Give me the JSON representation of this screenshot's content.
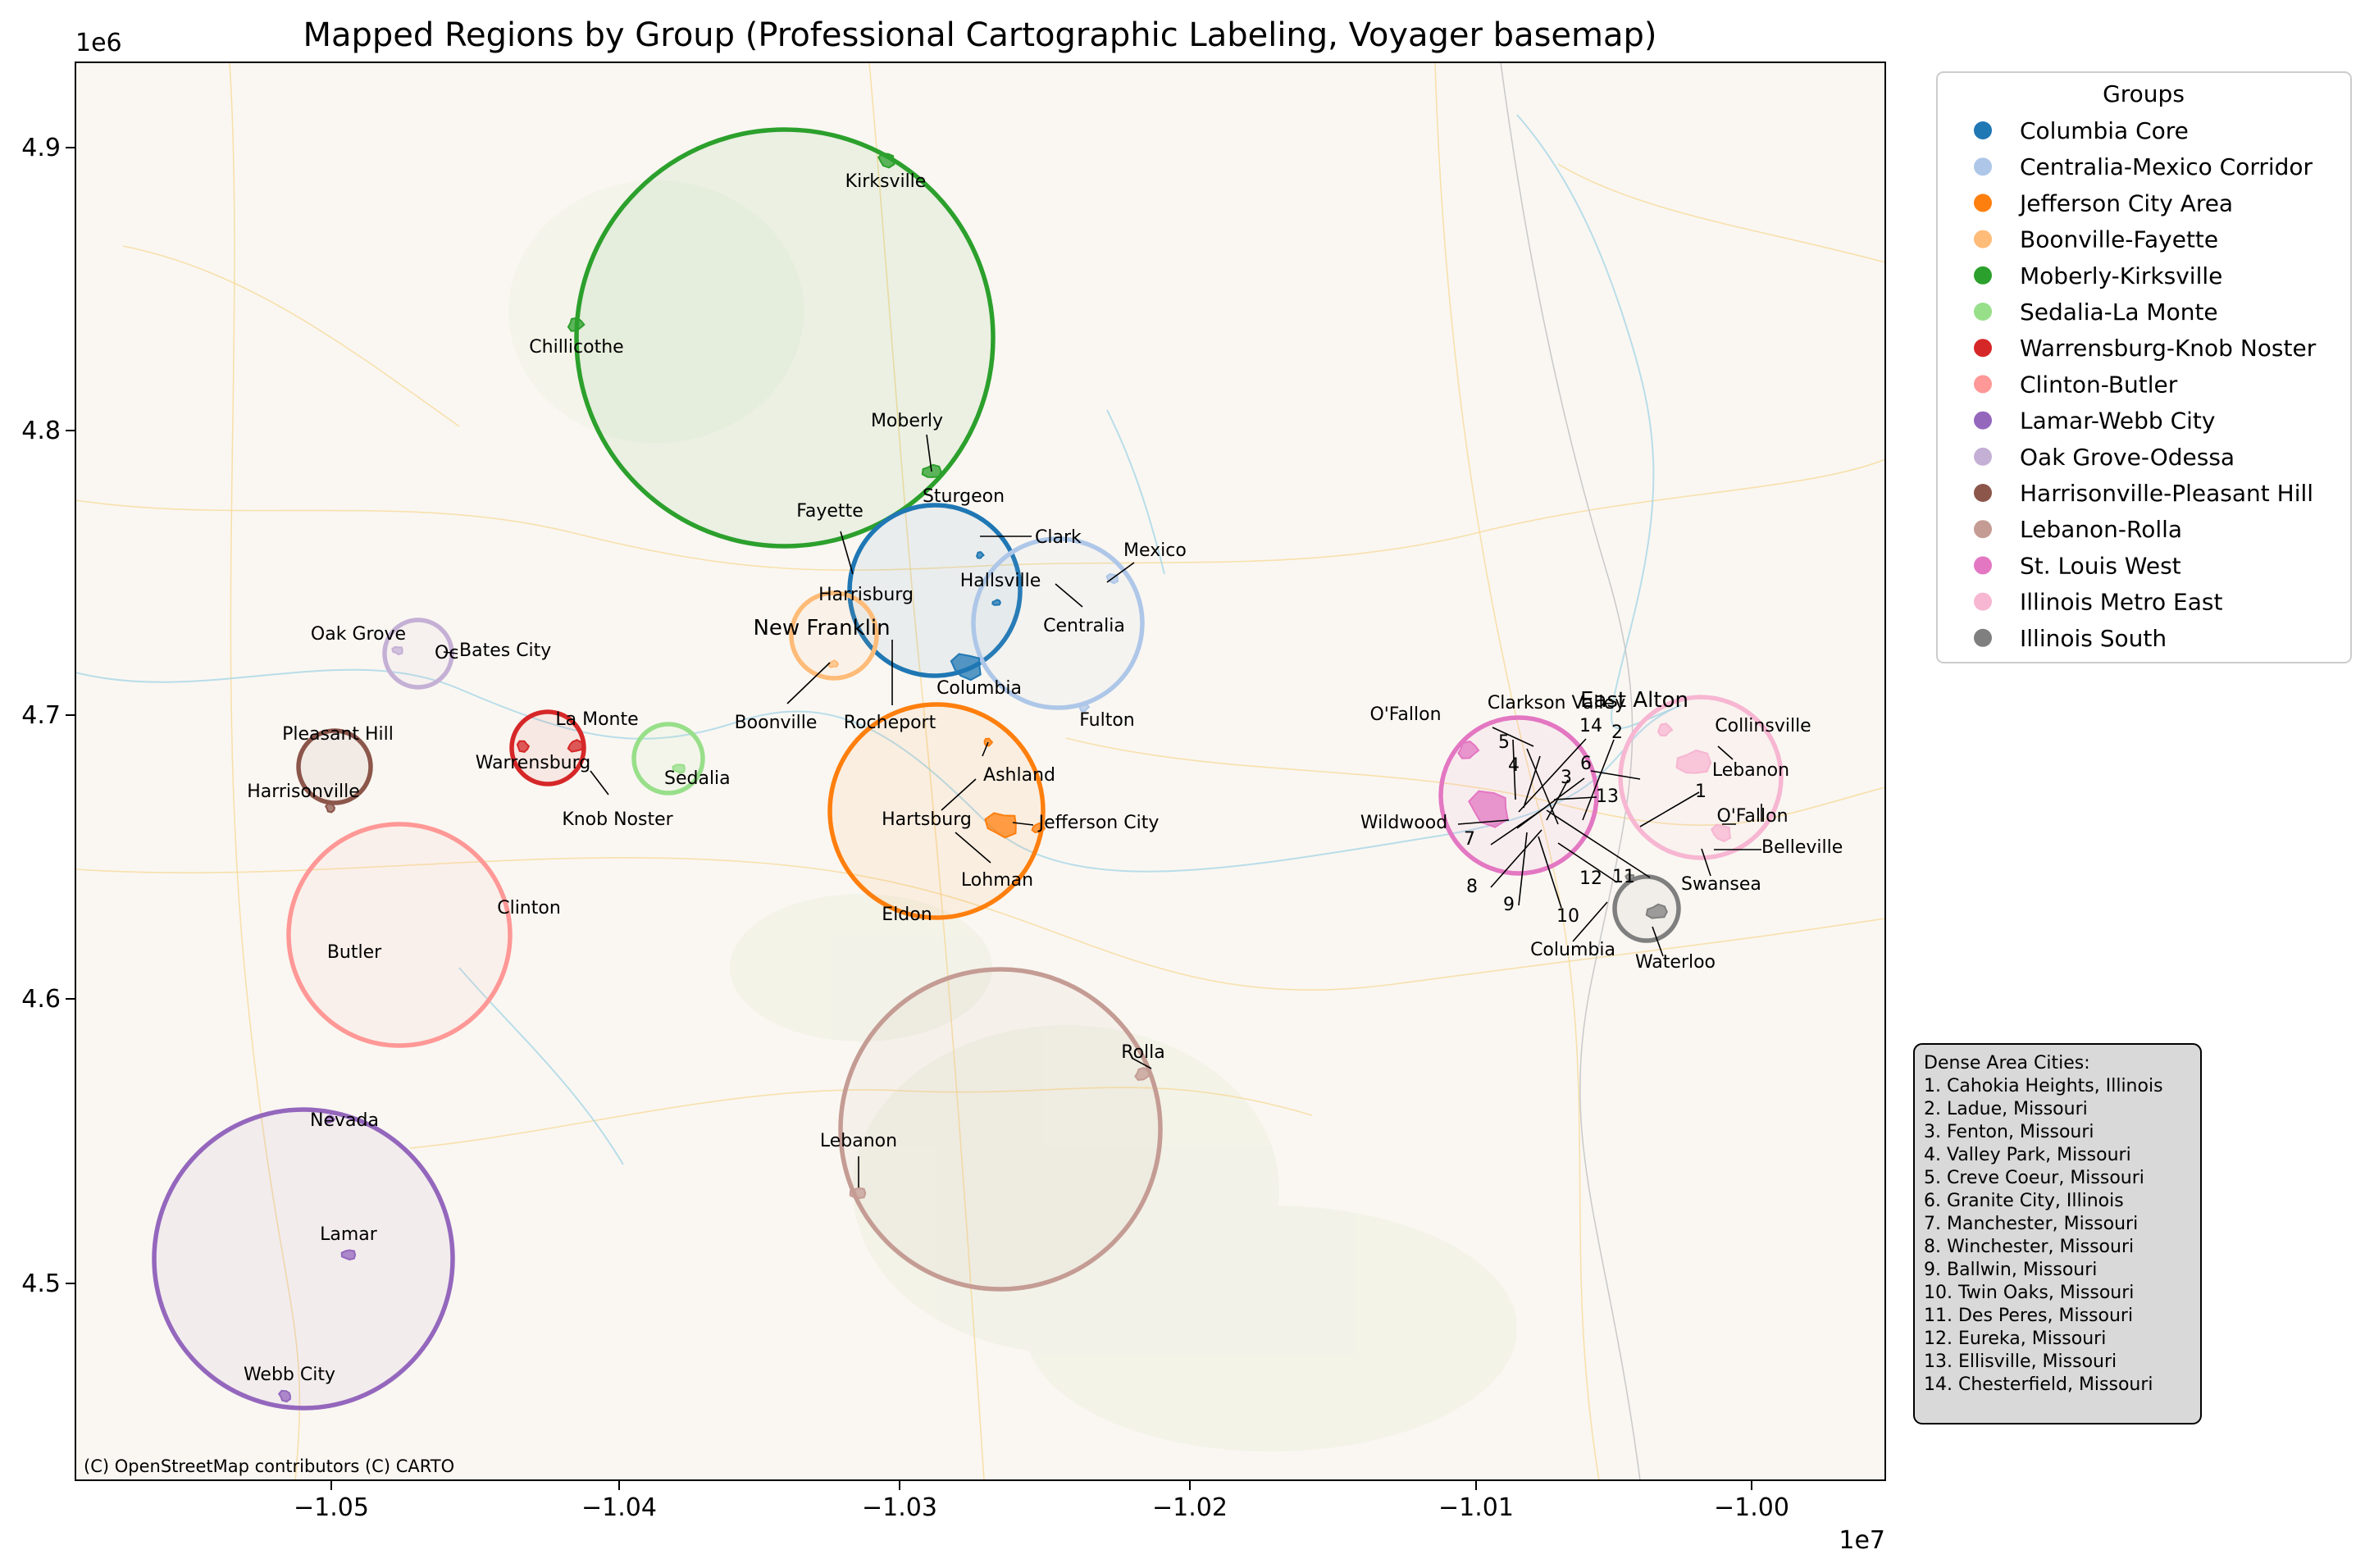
{
  "title": "Mapped Regions by Group (Professional Cartographic Labeling, Voyager basemap)",
  "x_offset_label": "1e7",
  "y_offset_label": "1e6",
  "x_ticks": [
    "−1.05",
    "−1.04",
    "−1.03",
    "−1.02",
    "−1.01",
    "−1.00"
  ],
  "y_ticks": [
    "4.9",
    "4.8",
    "4.7",
    "4.6",
    "4.5"
  ],
  "credit": "(C) OpenStreetMap contributors (C) CARTO",
  "legend_title": "Groups",
  "groups": [
    {
      "name": "Columbia Core",
      "color": "#1f77b4"
    },
    {
      "name": "Centralia-Mexico Corridor",
      "color": "#aec7e8"
    },
    {
      "name": "Jefferson City Area",
      "color": "#ff7f0e"
    },
    {
      "name": "Boonville-Fayette",
      "color": "#ffbb78"
    },
    {
      "name": "Moberly-Kirksville",
      "color": "#2ca02c"
    },
    {
      "name": "Sedalia-La Monte",
      "color": "#98df8a"
    },
    {
      "name": "Warrensburg-Knob Noster",
      "color": "#d62728"
    },
    {
      "name": "Clinton-Butler",
      "color": "#ff9896"
    },
    {
      "name": "Lamar-Webb City",
      "color": "#9467bd"
    },
    {
      "name": "Oak Grove-Odessa",
      "color": "#c5b0d5"
    },
    {
      "name": "Harrisonville-Pleasant Hill",
      "color": "#8c564b"
    },
    {
      "name": "Lebanon-Rolla",
      "color": "#c49c94"
    },
    {
      "name": "St. Louis West",
      "color": "#e377c2"
    },
    {
      "name": "Illinois Metro East",
      "color": "#f7b6d2"
    },
    {
      "name": "Illinois South",
      "color": "#7f7f7f"
    }
  ],
  "city_labels": [
    "Kirksville",
    "Chillicothe",
    "Moberly",
    "Sturgeon",
    "Clark",
    "Mexico",
    "Fayette",
    "Harrisburg",
    "Hallsville",
    "Centralia",
    "New Franklin",
    "Columbia",
    "Boonville",
    "Rocheport",
    "Fulton",
    "Ashland",
    "Hartsburg",
    "Jefferson City",
    "Lohman",
    "Eldon",
    "Oak Grove",
    "Oc",
    "Bates City",
    "La Monte",
    "Warrensburg",
    "Knob Noster",
    "Sedalia",
    "Pleasant Hill",
    "Harrisonville",
    "Clinton",
    "Butler",
    "Nevada",
    "Lamar",
    "Webb City",
    "Rolla",
    "Lebanon",
    "O'Fallon",
    "Clarkson Valley",
    "East Alton",
    "Collinsville",
    "Lebanon",
    "O'Fallon",
    "Belleville",
    "Swansea",
    "Wildwood",
    "Columbia",
    "Waterloo"
  ],
  "dense_numbers": [
    "1",
    "2",
    "3",
    "4",
    "5",
    "6",
    "7",
    "8",
    "9",
    "10",
    "11",
    "12",
    "13",
    "14"
  ],
  "dense_box": {
    "title": "Dense Area Cities:",
    "items": [
      "1. Cahokia Heights, Illinois",
      "2. Ladue, Missouri",
      "3. Fenton, Missouri",
      "4. Valley Park, Missouri",
      "5. Creve Coeur, Missouri",
      "6. Granite City, Illinois",
      "7. Manchester, Missouri",
      "8. Winchester, Missouri",
      "9. Ballwin, Missouri",
      "10. Twin Oaks, Missouri",
      "11. Des Peres, Missouri",
      "12. Eureka, Missouri",
      "13. Ellisville, Missouri",
      "14. Chesterfield, Missouri"
    ]
  }
}
